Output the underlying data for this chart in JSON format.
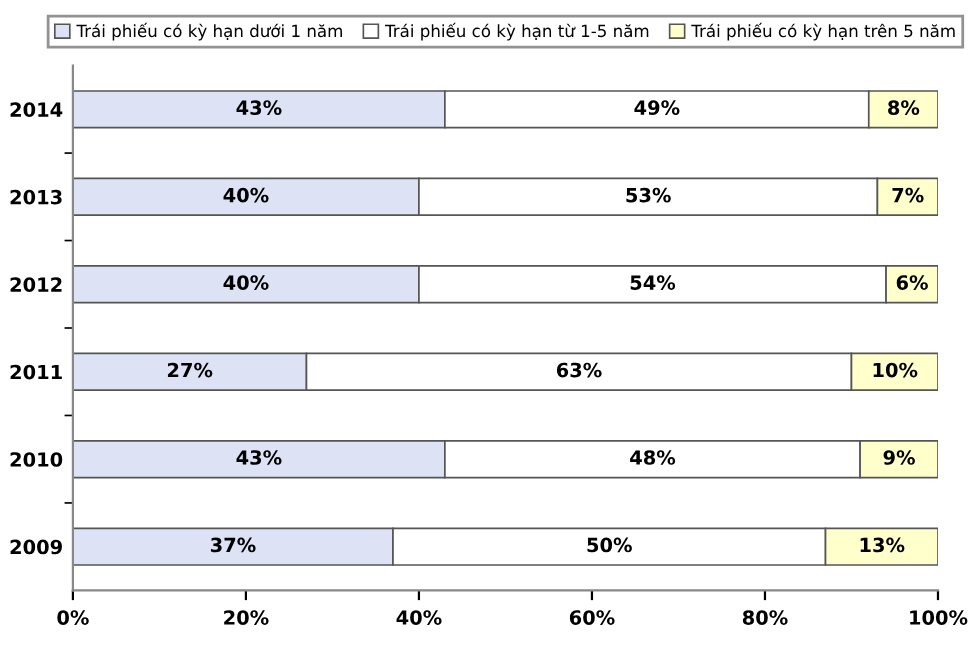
{
  "chart_data": {
    "type": "bar",
    "orientation": "horizontal",
    "stacked": true,
    "categories": [
      "2014",
      "2013",
      "2012",
      "2011",
      "2010",
      "2009"
    ],
    "series": [
      {
        "name": "Trái phiếu có kỳ hạn dưới 1 năm",
        "color": "#dde3f5",
        "values": [
          43,
          40,
          40,
          27,
          43,
          37
        ],
        "value_labels": [
          "43%",
          "40%",
          "40%",
          "27%",
          "43%",
          "37%"
        ]
      },
      {
        "name": "Trái phiếu có kỳ hạn từ 1-5 năm",
        "color": "#ffffff",
        "values": [
          49,
          53,
          54,
          63,
          48,
          50
        ],
        "value_labels": [
          "49%",
          "53%",
          "54%",
          "63%",
          "48%",
          "50%"
        ]
      },
      {
        "name": "Trái phiếu có kỳ hạn trên 5 năm",
        "color": "#ffffcc",
        "values": [
          8,
          7,
          6,
          10,
          9,
          13
        ],
        "value_labels": [
          "8%",
          "7%",
          "6%",
          "10%",
          "9%",
          "13%"
        ]
      }
    ],
    "xlim": [
      0,
      100
    ],
    "xticks": [
      {
        "value": 0,
        "label": "0%"
      },
      {
        "value": 20,
        "label": "20%"
      },
      {
        "value": 40,
        "label": "40%"
      },
      {
        "value": 60,
        "label": "60%"
      },
      {
        "value": 80,
        "label": "80%"
      },
      {
        "value": 100,
        "label": "100%"
      }
    ],
    "legend": "top",
    "grid": false
  }
}
